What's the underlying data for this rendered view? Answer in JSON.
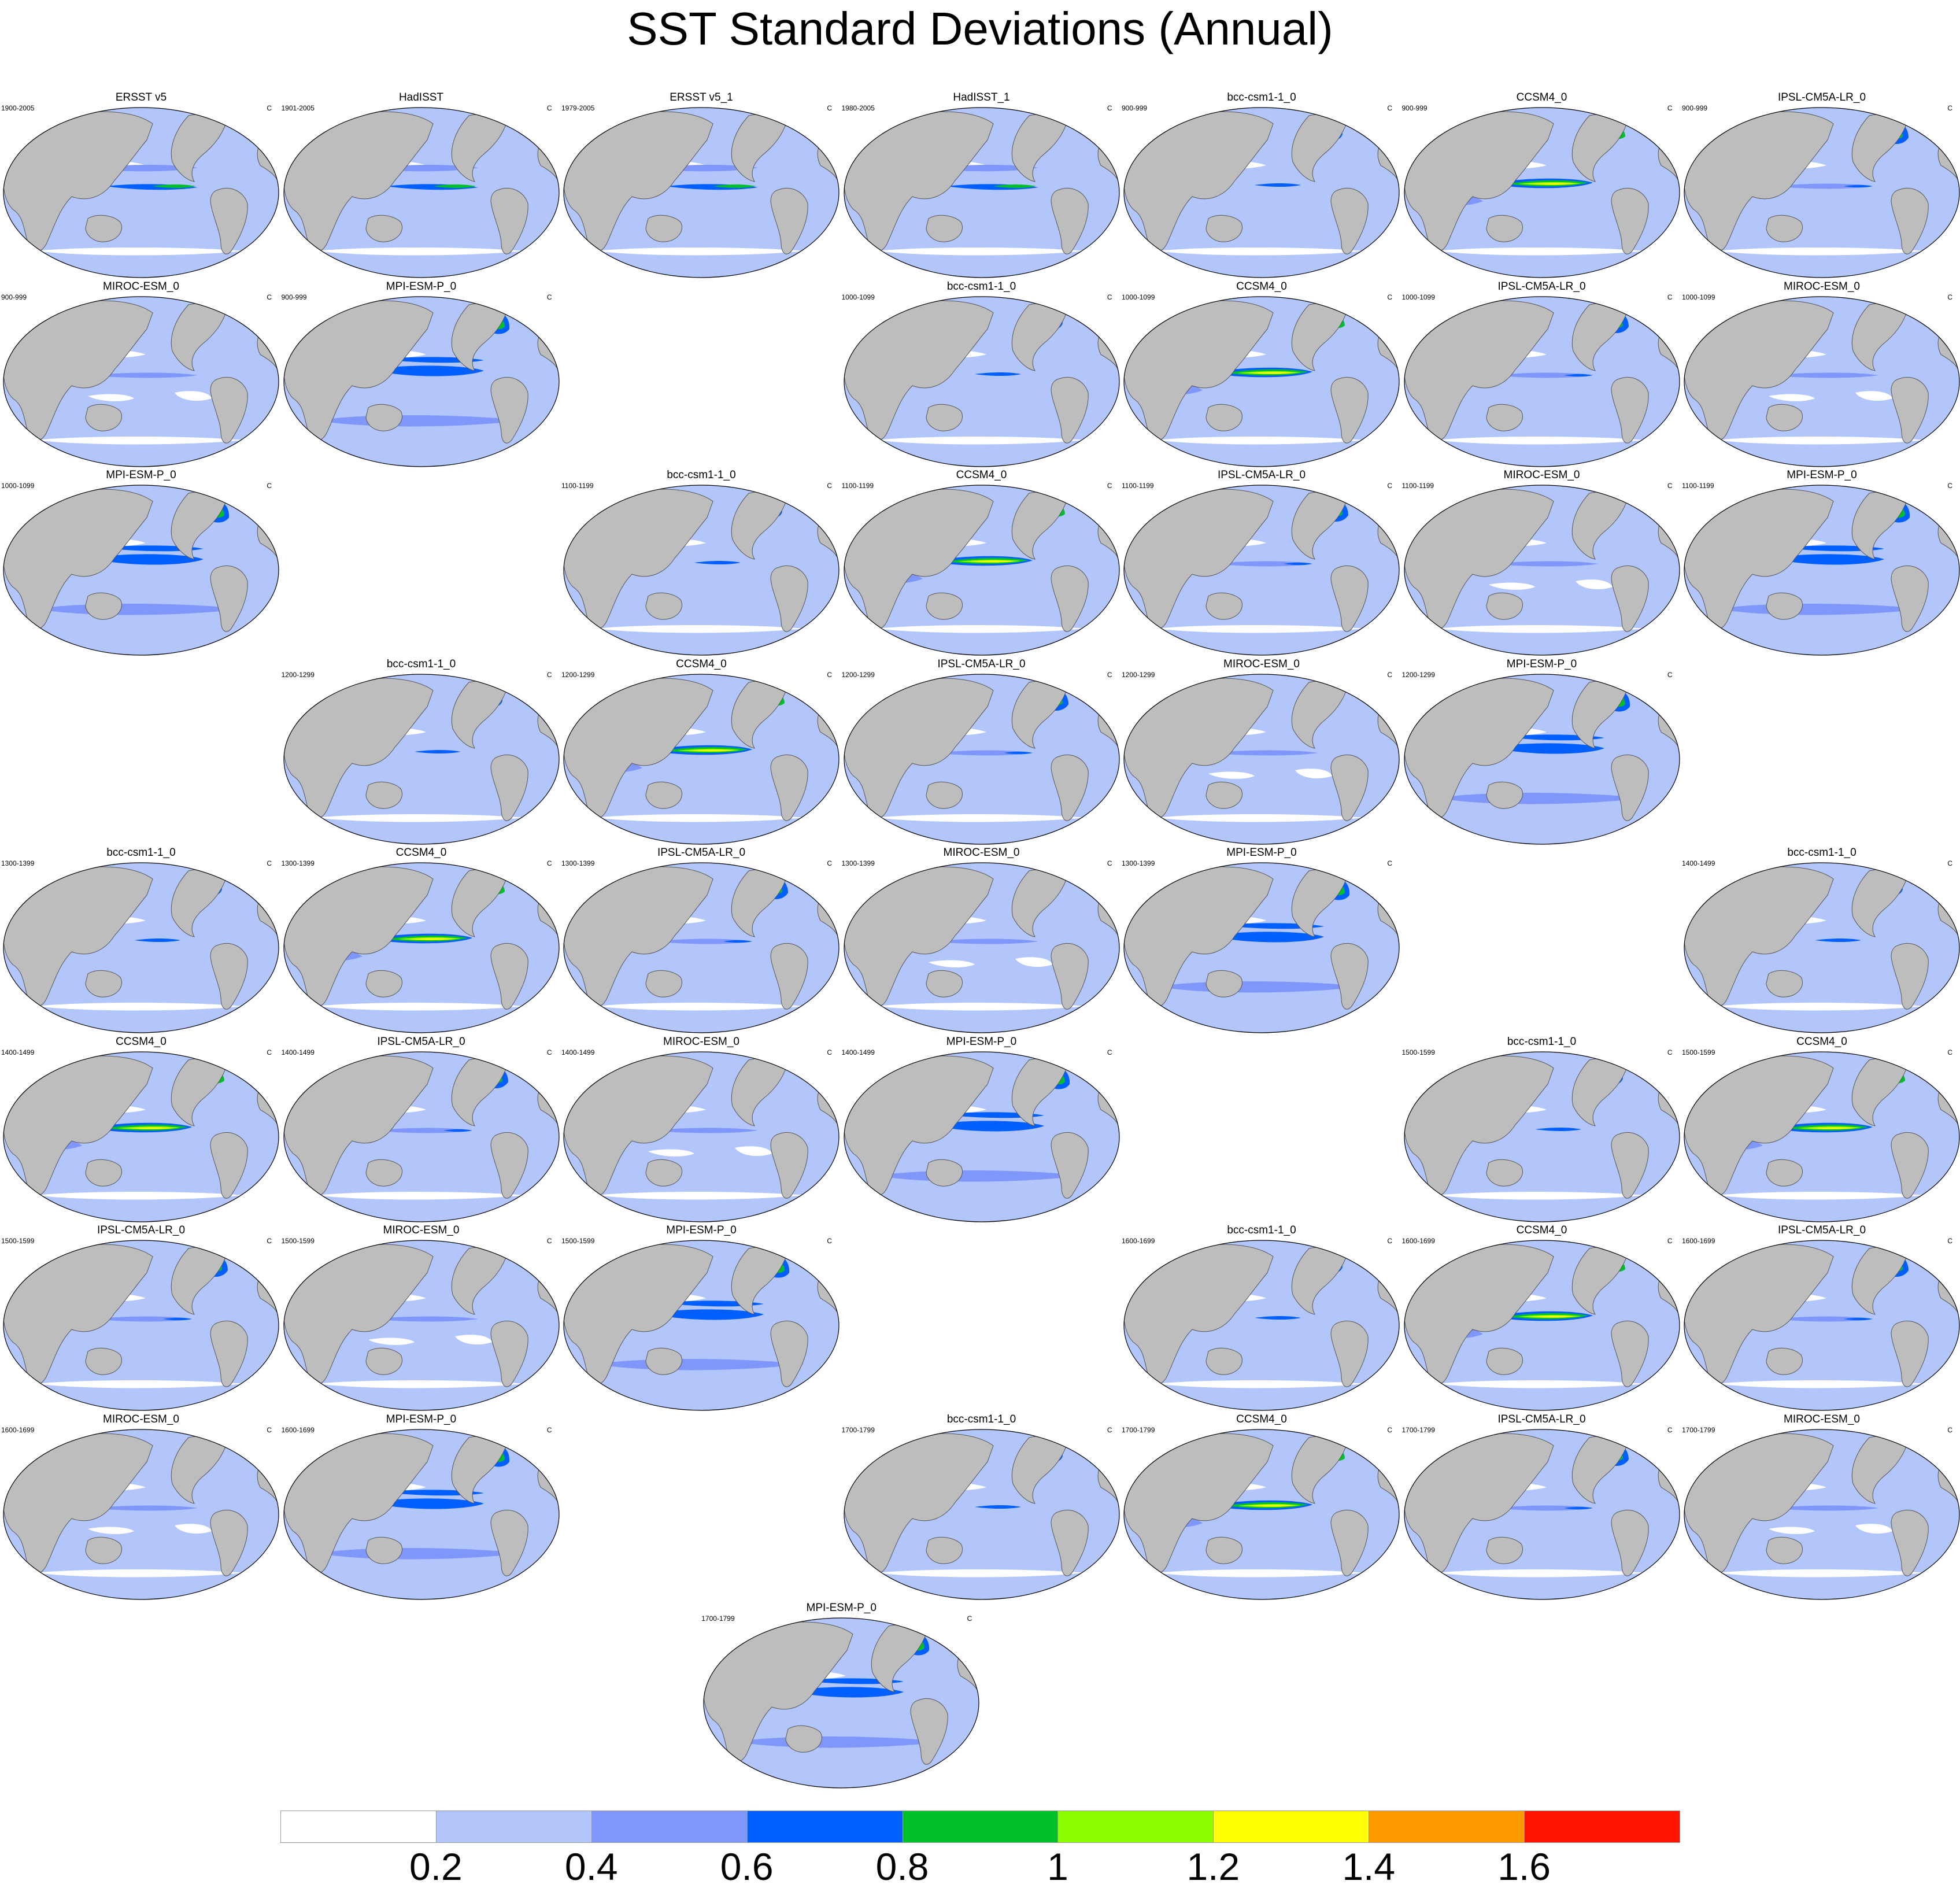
{
  "title": "SST Standard Deviations (Annual)",
  "units": "C",
  "panels": [
    {
      "row": 0,
      "col": 0,
      "name": "ERSST v5",
      "period": "1900-2005",
      "style": "obs"
    },
    {
      "row": 0,
      "col": 1,
      "name": "HadISST",
      "period": "1901-2005",
      "style": "obs"
    },
    {
      "row": 0,
      "col": 2,
      "name": "ERSST v5_1",
      "period": "1979-2005",
      "style": "obs"
    },
    {
      "row": 0,
      "col": 3,
      "name": "HadISST_1",
      "period": "1980-2005",
      "style": "obs"
    },
    {
      "row": 0,
      "col": 4,
      "name": "bcc-csm1-1_0",
      "period": "900-999",
      "style": "bcc"
    },
    {
      "row": 0,
      "col": 5,
      "name": "CCSM4_0",
      "period": "900-999",
      "style": "ccsm"
    },
    {
      "row": 0,
      "col": 6,
      "name": "IPSL-CM5A-LR_0",
      "period": "900-999",
      "style": "ipsl"
    },
    {
      "row": 1,
      "col": 0,
      "name": "MIROC-ESM_0",
      "period": "900-999",
      "style": "miroc"
    },
    {
      "row": 1,
      "col": 1,
      "name": "MPI-ESM-P_0",
      "period": "900-999",
      "style": "mpi"
    },
    {
      "row": 1,
      "col": 3,
      "name": "bcc-csm1-1_0",
      "period": "1000-1099",
      "style": "bcc"
    },
    {
      "row": 1,
      "col": 4,
      "name": "CCSM4_0",
      "period": "1000-1099",
      "style": "ccsm"
    },
    {
      "row": 1,
      "col": 5,
      "name": "IPSL-CM5A-LR_0",
      "period": "1000-1099",
      "style": "ipsl"
    },
    {
      "row": 1,
      "col": 6,
      "name": "MIROC-ESM_0",
      "period": "1000-1099",
      "style": "miroc"
    },
    {
      "row": 2,
      "col": 0,
      "name": "MPI-ESM-P_0",
      "period": "1000-1099",
      "style": "mpi"
    },
    {
      "row": 2,
      "col": 2,
      "name": "bcc-csm1-1_0",
      "period": "1100-1199",
      "style": "bcc"
    },
    {
      "row": 2,
      "col": 3,
      "name": "CCSM4_0",
      "period": "1100-1199",
      "style": "ccsm"
    },
    {
      "row": 2,
      "col": 4,
      "name": "IPSL-CM5A-LR_0",
      "period": "1100-1199",
      "style": "ipsl"
    },
    {
      "row": 2,
      "col": 5,
      "name": "MIROC-ESM_0",
      "period": "1100-1199",
      "style": "miroc"
    },
    {
      "row": 2,
      "col": 6,
      "name": "MPI-ESM-P_0",
      "period": "1100-1199",
      "style": "mpi"
    },
    {
      "row": 3,
      "col": 1,
      "name": "bcc-csm1-1_0",
      "period": "1200-1299",
      "style": "bcc"
    },
    {
      "row": 3,
      "col": 2,
      "name": "CCSM4_0",
      "period": "1200-1299",
      "style": "ccsm"
    },
    {
      "row": 3,
      "col": 3,
      "name": "IPSL-CM5A-LR_0",
      "period": "1200-1299",
      "style": "ipsl"
    },
    {
      "row": 3,
      "col": 4,
      "name": "MIROC-ESM_0",
      "period": "1200-1299",
      "style": "miroc"
    },
    {
      "row": 3,
      "col": 5,
      "name": "MPI-ESM-P_0",
      "period": "1200-1299",
      "style": "mpi"
    },
    {
      "row": 4,
      "col": 0,
      "name": "bcc-csm1-1_0",
      "period": "1300-1399",
      "style": "bcc"
    },
    {
      "row": 4,
      "col": 1,
      "name": "CCSM4_0",
      "period": "1300-1399",
      "style": "ccsm"
    },
    {
      "row": 4,
      "col": 2,
      "name": "IPSL-CM5A-LR_0",
      "period": "1300-1399",
      "style": "ipsl"
    },
    {
      "row": 4,
      "col": 3,
      "name": "MIROC-ESM_0",
      "period": "1300-1399",
      "style": "miroc"
    },
    {
      "row": 4,
      "col": 4,
      "name": "MPI-ESM-P_0",
      "period": "1300-1399",
      "style": "mpi"
    },
    {
      "row": 4,
      "col": 6,
      "name": "bcc-csm1-1_0",
      "period": "1400-1499",
      "style": "bcc"
    },
    {
      "row": 5,
      "col": 0,
      "name": "CCSM4_0",
      "period": "1400-1499",
      "style": "ccsm"
    },
    {
      "row": 5,
      "col": 1,
      "name": "IPSL-CM5A-LR_0",
      "period": "1400-1499",
      "style": "ipsl"
    },
    {
      "row": 5,
      "col": 2,
      "name": "MIROC-ESM_0",
      "period": "1400-1499",
      "style": "miroc"
    },
    {
      "row": 5,
      "col": 3,
      "name": "MPI-ESM-P_0",
      "period": "1400-1499",
      "style": "mpi"
    },
    {
      "row": 5,
      "col": 5,
      "name": "bcc-csm1-1_0",
      "period": "1500-1599",
      "style": "bcc"
    },
    {
      "row": 5,
      "col": 6,
      "name": "CCSM4_0",
      "period": "1500-1599",
      "style": "ccsm"
    },
    {
      "row": 6,
      "col": 0,
      "name": "IPSL-CM5A-LR_0",
      "period": "1500-1599",
      "style": "ipsl"
    },
    {
      "row": 6,
      "col": 1,
      "name": "MIROC-ESM_0",
      "period": "1500-1599",
      "style": "miroc"
    },
    {
      "row": 6,
      "col": 2,
      "name": "MPI-ESM-P_0",
      "period": "1500-1599",
      "style": "mpi"
    },
    {
      "row": 6,
      "col": 4,
      "name": "bcc-csm1-1_0",
      "period": "1600-1699",
      "style": "bcc"
    },
    {
      "row": 6,
      "col": 5,
      "name": "CCSM4_0",
      "period": "1600-1699",
      "style": "ccsm"
    },
    {
      "row": 6,
      "col": 6,
      "name": "IPSL-CM5A-LR_0",
      "period": "1600-1699",
      "style": "ipsl"
    },
    {
      "row": 7,
      "col": 0,
      "name": "MIROC-ESM_0",
      "period": "1600-1699",
      "style": "miroc"
    },
    {
      "row": 7,
      "col": 1,
      "name": "MPI-ESM-P_0",
      "period": "1600-1699",
      "style": "mpi"
    },
    {
      "row": 7,
      "col": 3,
      "name": "bcc-csm1-1_0",
      "period": "1700-1799",
      "style": "bcc"
    },
    {
      "row": 7,
      "col": 4,
      "name": "CCSM4_0",
      "period": "1700-1799",
      "style": "ccsm"
    },
    {
      "row": 7,
      "col": 5,
      "name": "IPSL-CM5A-LR_0",
      "period": "1700-1799",
      "style": "ipsl"
    },
    {
      "row": 7,
      "col": 6,
      "name": "MIROC-ESM_0",
      "period": "1700-1799",
      "style": "miroc"
    },
    {
      "row": 8,
      "col": 2.5,
      "name": "MPI-ESM-P_0",
      "period": "1700-1799",
      "style": "mpi"
    }
  ],
  "colorbar": {
    "colors": [
      "#ffffff",
      "#b3c6fb",
      "#7f97fb",
      "#005ffe",
      "#00c02a",
      "#8cfd00",
      "#ffff00",
      "#ff9900",
      "#ff1400"
    ],
    "labels": [
      "0.2",
      "0.4",
      "0.6",
      "0.8",
      "1",
      "1.2",
      "1.4",
      "1.6"
    ]
  },
  "colors": {
    "land": "#bdbdbd",
    "coast": "#555555"
  }
}
